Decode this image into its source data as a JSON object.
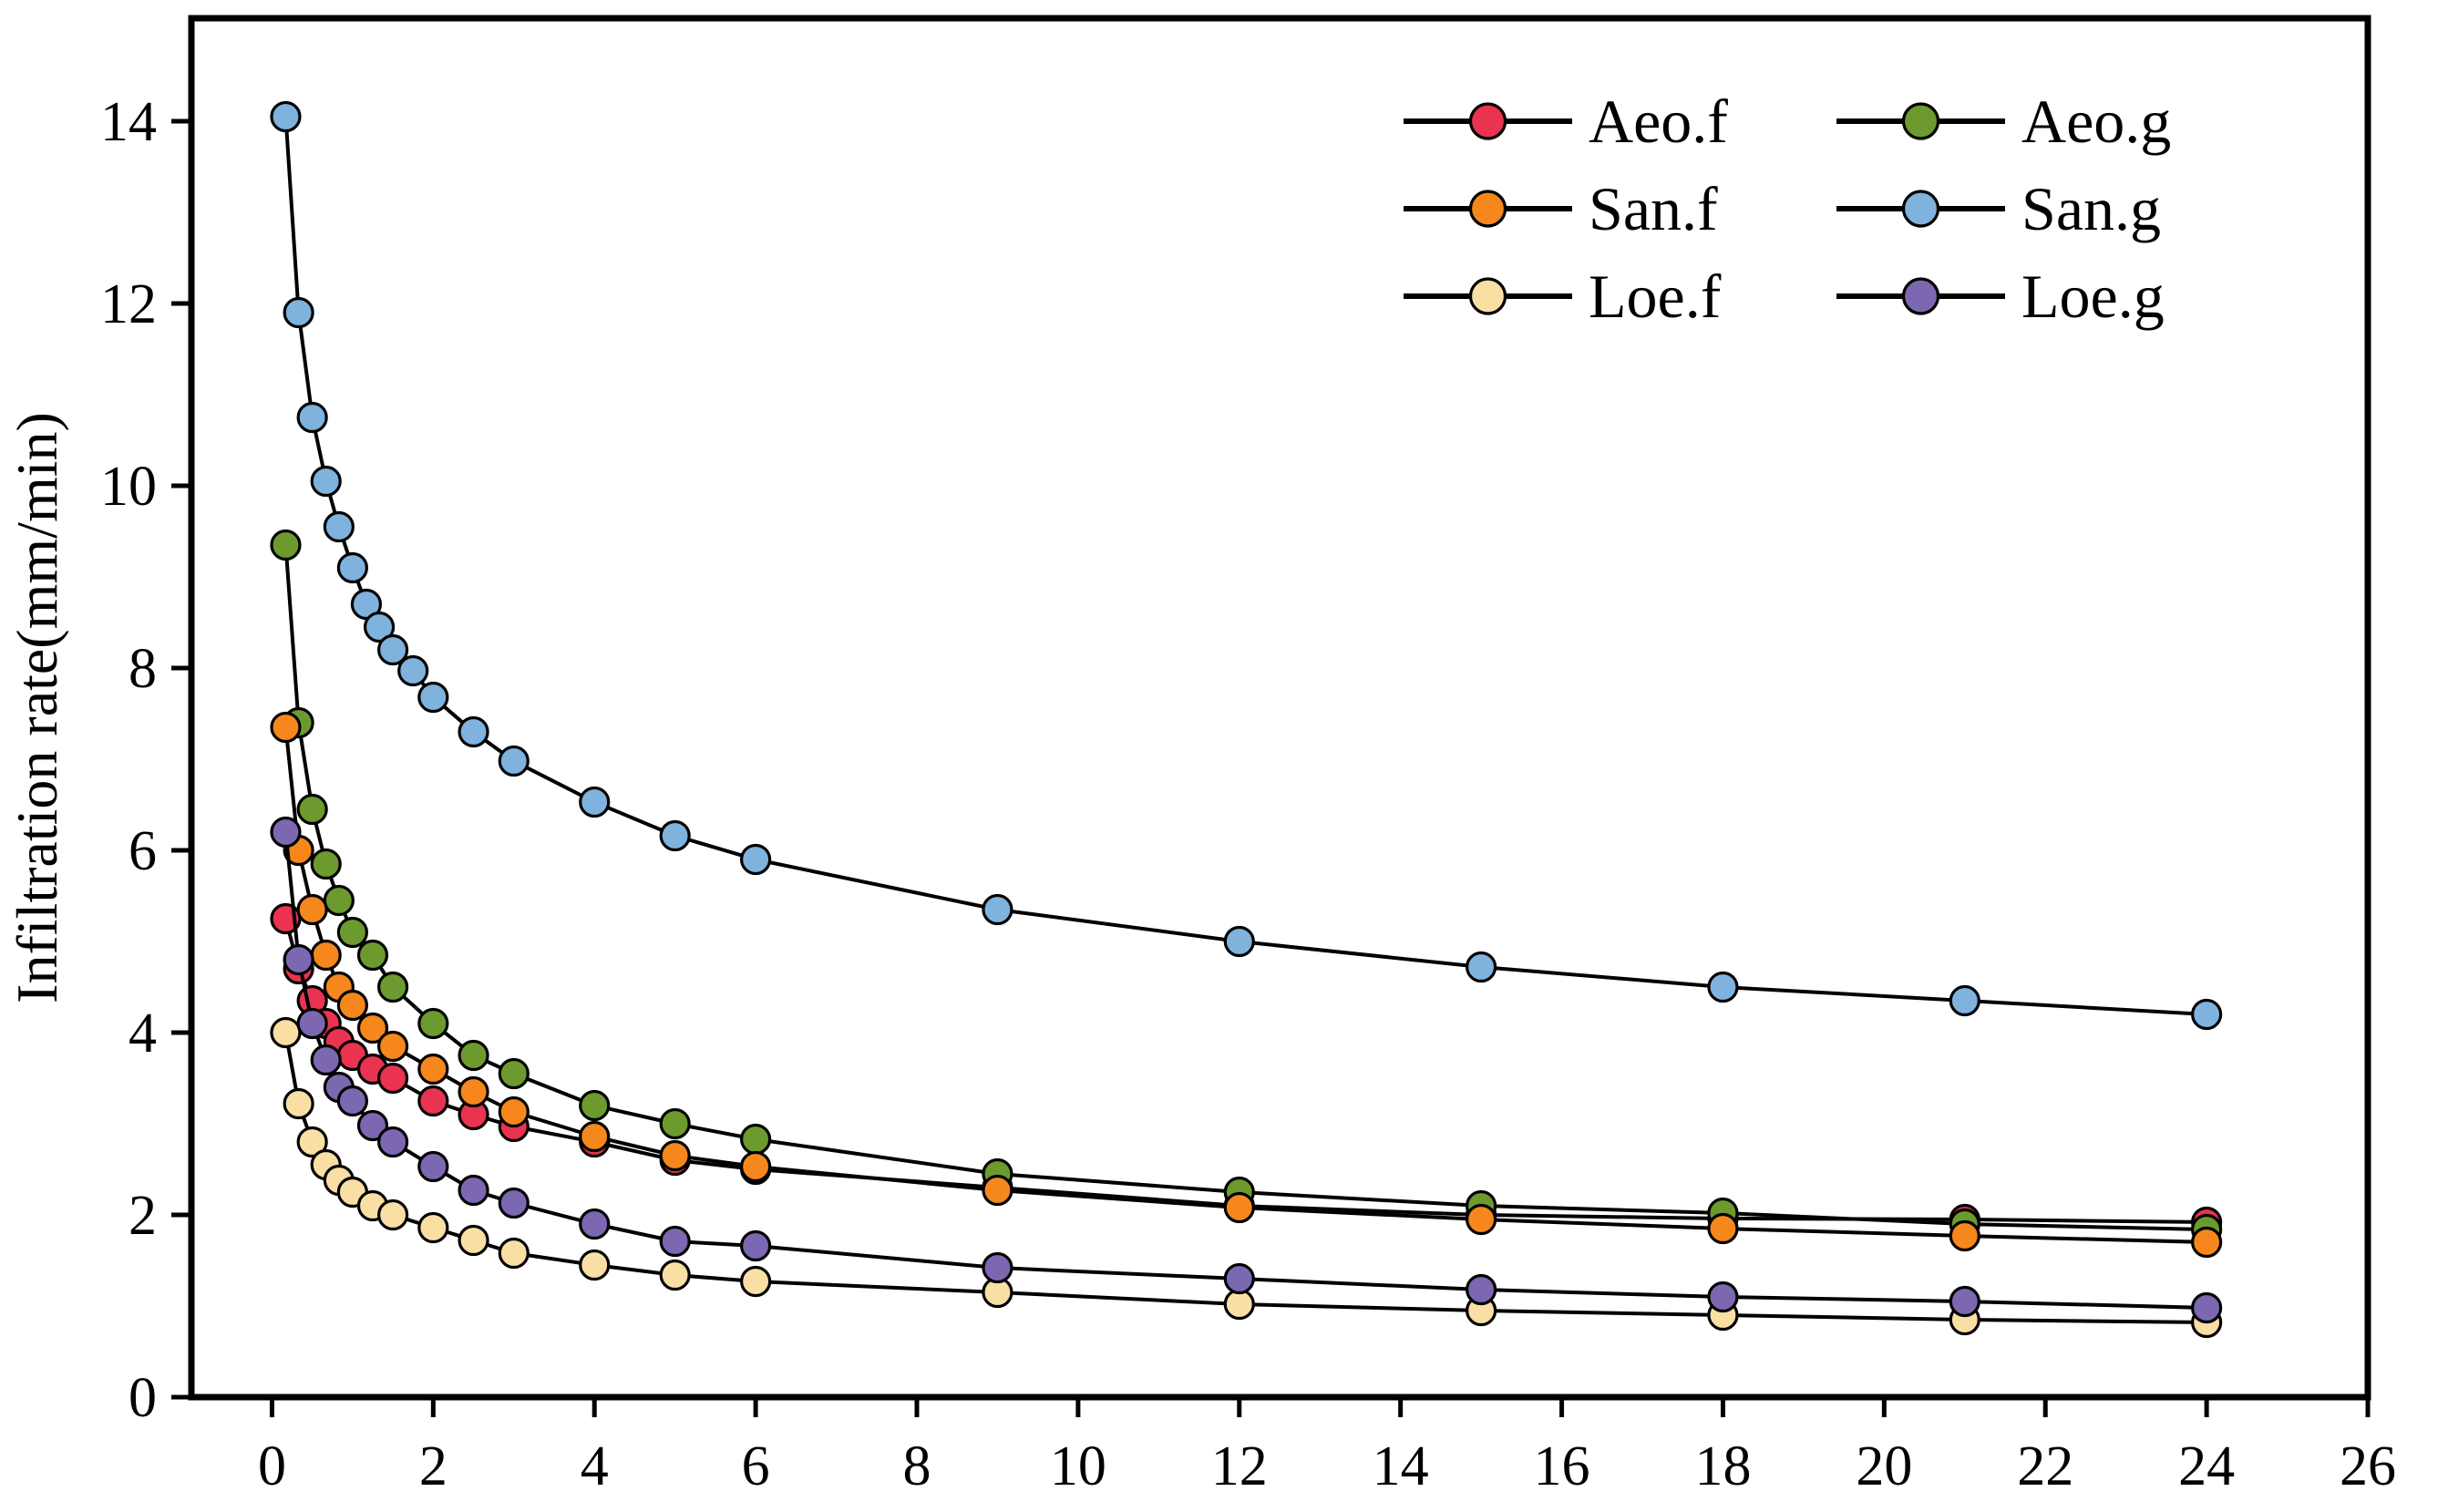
{
  "figure": {
    "background": "#ffffff",
    "axis_color": "#000000",
    "ylabel": "Infiltration rate(mm/min)",
    "xlabel": ""
  },
  "chart_data": {
    "type": "line",
    "title": "",
    "xlabel": "",
    "ylabel": "Infiltration rate(mm/min)",
    "xlim": [
      -1,
      26
    ],
    "ylim": [
      0,
      15.13
    ],
    "x_ticks": [
      0,
      2,
      4,
      6,
      8,
      10,
      12,
      14,
      16,
      18,
      20,
      22,
      24,
      26
    ],
    "y_ticks": [
      0,
      2,
      4,
      6,
      8,
      10,
      12,
      14
    ],
    "grid": false,
    "legend_position": "top-right",
    "marker": "circle",
    "line_color": "#000000",
    "series": [
      {
        "name": "Aeo.f",
        "color": "#e93350",
        "x": [
          0.17,
          0.33,
          0.5,
          0.67,
          0.83,
          1,
          1.25,
          1.5,
          2,
          2.5,
          3,
          4,
          5,
          6,
          9,
          12,
          15,
          18,
          21,
          24
        ],
        "y": [
          5.25,
          4.7,
          4.35,
          4.1,
          3.9,
          3.75,
          3.6,
          3.5,
          3.25,
          3.1,
          2.97,
          2.8,
          2.6,
          2.5,
          2.3,
          2.1,
          2.0,
          1.96,
          1.95,
          1.92
        ]
      },
      {
        "name": "Aeo.g",
        "color": "#6d9a2e",
        "x": [
          0.17,
          0.33,
          0.5,
          0.67,
          0.83,
          1,
          1.25,
          1.5,
          2,
          2.5,
          3,
          4,
          5,
          6,
          9,
          12,
          15,
          18,
          21,
          24
        ],
        "y": [
          9.35,
          7.4,
          6.45,
          5.85,
          5.45,
          5.1,
          4.85,
          4.5,
          4.1,
          3.75,
          3.55,
          3.2,
          3.0,
          2.83,
          2.45,
          2.25,
          2.1,
          2.02,
          1.9,
          1.84
        ]
      },
      {
        "name": "San.f",
        "color": "#f5871c",
        "x": [
          0.17,
          0.33,
          0.5,
          0.67,
          0.83,
          1,
          1.25,
          1.5,
          2,
          2.5,
          3,
          4,
          5,
          6,
          9,
          12,
          15,
          18,
          21,
          24
        ],
        "y": [
          7.35,
          6.0,
          5.35,
          4.85,
          4.5,
          4.3,
          4.05,
          3.85,
          3.6,
          3.35,
          3.13,
          2.86,
          2.65,
          2.53,
          2.27,
          2.08,
          1.95,
          1.85,
          1.77,
          1.7
        ]
      },
      {
        "name": "San.g",
        "color": "#7fb2dd",
        "x": [
          0.17,
          0.33,
          0.5,
          0.67,
          0.83,
          1,
          1.17,
          1.33,
          1.5,
          1.75,
          2,
          2.5,
          3,
          4,
          5,
          6,
          9,
          12,
          15,
          18,
          21,
          24
        ],
        "y": [
          14.05,
          11.9,
          10.75,
          10.05,
          9.55,
          9.1,
          8.7,
          8.45,
          8.2,
          7.97,
          7.68,
          7.3,
          6.98,
          6.53,
          6.16,
          5.9,
          5.35,
          5.0,
          4.72,
          4.5,
          4.35,
          4.2
        ]
      },
      {
        "name": "Loe.f",
        "color": "#fadfa5",
        "x": [
          0.17,
          0.33,
          0.5,
          0.67,
          0.83,
          1,
          1.25,
          1.5,
          2,
          2.5,
          3,
          4,
          5,
          6,
          9,
          12,
          15,
          18,
          21,
          24
        ],
        "y": [
          4.0,
          3.22,
          2.8,
          2.55,
          2.38,
          2.25,
          2.1,
          2.0,
          1.86,
          1.72,
          1.58,
          1.45,
          1.34,
          1.27,
          1.15,
          1.02,
          0.95,
          0.9,
          0.85,
          0.82
        ]
      },
      {
        "name": "Loe.g",
        "color": "#7b68b0",
        "x": [
          0.17,
          0.33,
          0.5,
          0.67,
          0.83,
          1,
          1.25,
          1.5,
          2,
          2.5,
          3,
          4,
          5,
          6,
          9,
          12,
          15,
          18,
          21,
          24
        ],
        "y": [
          6.2,
          4.8,
          4.1,
          3.7,
          3.4,
          3.25,
          2.98,
          2.8,
          2.53,
          2.27,
          2.13,
          1.9,
          1.71,
          1.66,
          1.42,
          1.3,
          1.18,
          1.1,
          1.05,
          0.98
        ]
      }
    ]
  }
}
